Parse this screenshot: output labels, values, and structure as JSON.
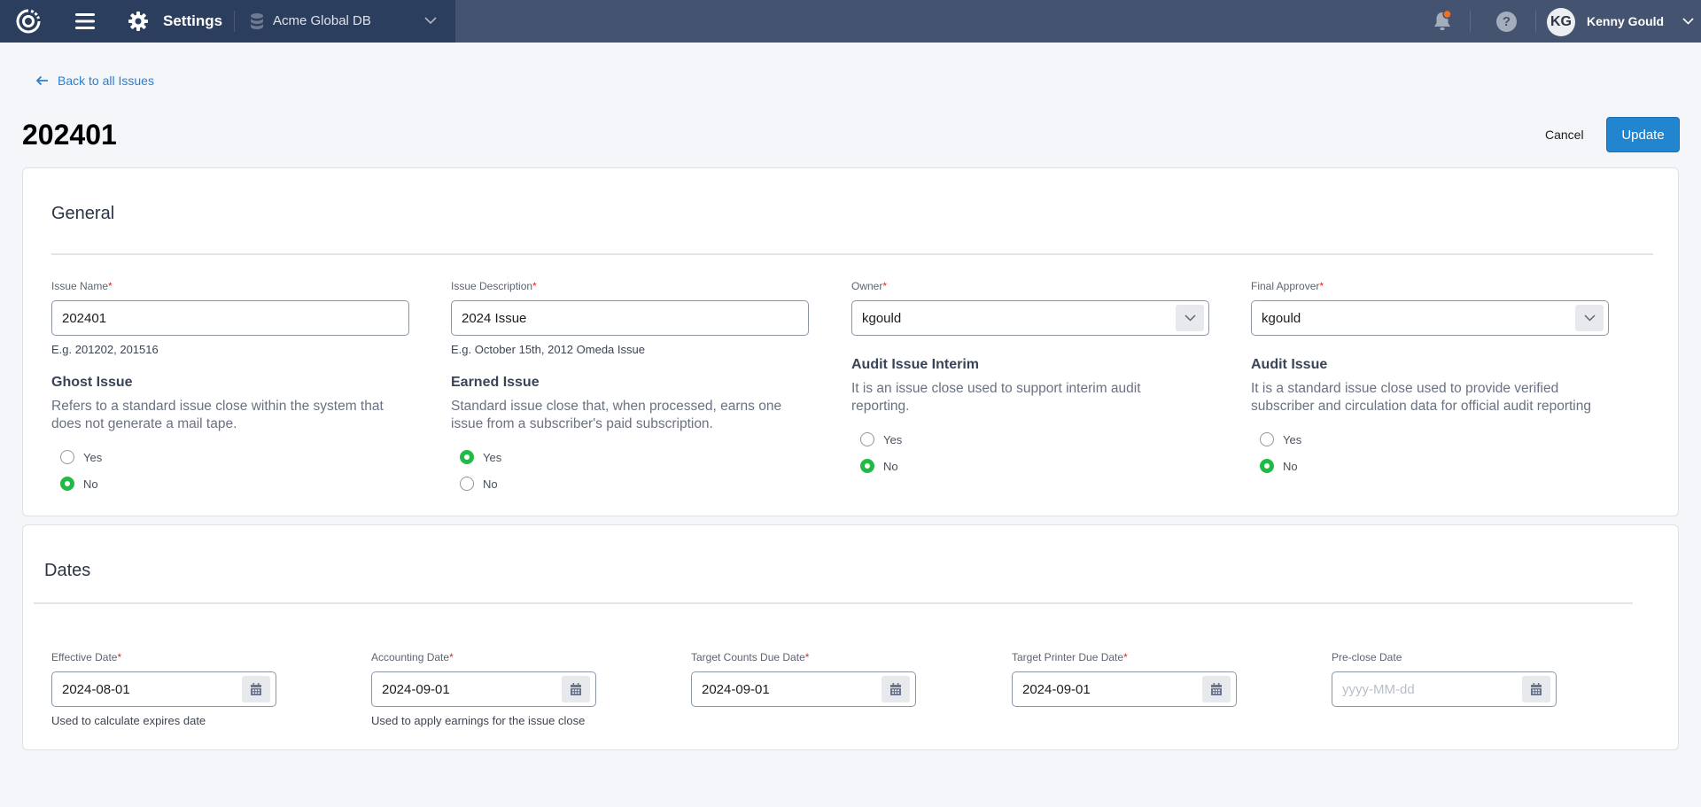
{
  "topbar": {
    "app_label": "Settings",
    "database": "Acme Global DB",
    "user_initials": "KG",
    "user_name": "Kenny Gould",
    "notification_dot_color": "#f2711c"
  },
  "page": {
    "back_link": "Back to all Issues",
    "title": "202401",
    "cancel_label": "Cancel",
    "update_label": "Update"
  },
  "general": {
    "heading": "General",
    "issue_name": {
      "label": "Issue Name",
      "value": "202401",
      "help": "E.g. 201202, 201516"
    },
    "issue_description": {
      "label": "Issue Description",
      "value": "2024 Issue",
      "help": "E.g. October 15th, 2012 Omeda Issue"
    },
    "owner": {
      "label": "Owner",
      "value": "kgould"
    },
    "final_approver": {
      "label": "Final Approver",
      "value": "kgould"
    },
    "ghost_issue": {
      "title": "Ghost Issue",
      "desc": "Refers to a standard issue close within the system that does not generate a mail tape.",
      "yes": "Yes",
      "no": "No",
      "selected": "No"
    },
    "earned_issue": {
      "title": "Earned Issue",
      "desc": "Standard issue close that, when processed, earns one issue from a subscriber's paid subscription.",
      "yes": "Yes",
      "no": "No",
      "selected": "Yes"
    },
    "audit_issue_interim": {
      "title": "Audit Issue Interim",
      "desc": "It is an issue close used to support interim audit reporting.",
      "yes": "Yes",
      "no": "No",
      "selected": "No"
    },
    "audit_issue": {
      "title": "Audit Issue",
      "desc": "It is a standard issue close used to provide verified subscriber and circulation data for official audit reporting",
      "yes": "Yes",
      "no": "No",
      "selected": "No"
    }
  },
  "dates": {
    "heading": "Dates",
    "fields": [
      {
        "label": "Effective Date",
        "required": true,
        "value": "2024-08-01",
        "help": "Used to calculate expires date"
      },
      {
        "label": "Accounting Date",
        "required": true,
        "value": "2024-09-01",
        "help": "Used to apply earnings for the issue close"
      },
      {
        "label": "Target Counts Due Date",
        "required": true,
        "value": "2024-09-01",
        "help": ""
      },
      {
        "label": "Target Printer Due Date",
        "required": true,
        "value": "2024-09-01",
        "help": ""
      },
      {
        "label": "Pre-close Date",
        "required": false,
        "value": "",
        "placeholder": "yyyy-MM-dd",
        "help": ""
      }
    ]
  },
  "colors": {
    "primary": "#2185d0",
    "radio_checked": "#21ba45",
    "required": "#db2828",
    "header": "#2c3e5d"
  }
}
